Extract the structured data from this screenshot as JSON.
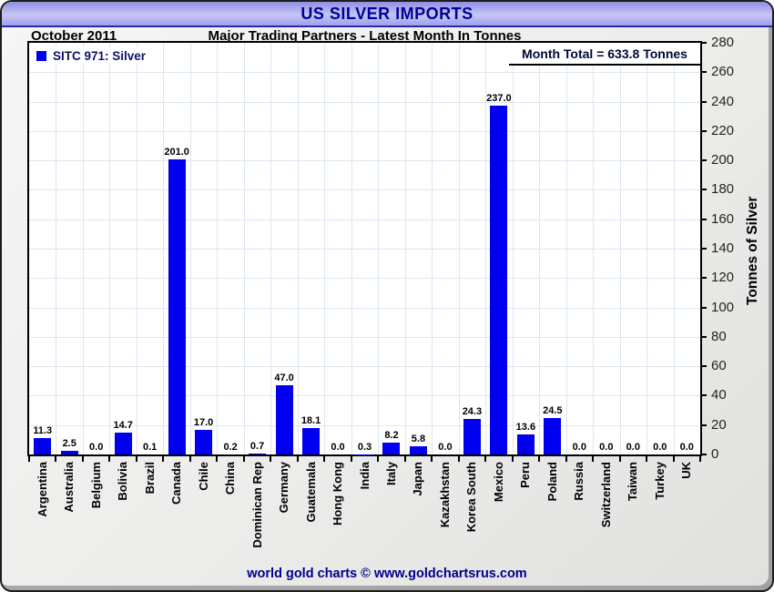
{
  "window": {
    "title": "US SILVER IMPORTS"
  },
  "header": {
    "date": "October 2011",
    "subtitle": "Major Trading Partners - Latest Month In Tonnes",
    "month_total": "Month Total = 633.8 Tonnes"
  },
  "legend": {
    "label": "SITC 971: Silver"
  },
  "footer": {
    "credit": "world gold charts © www.goldchartsrus.com"
  },
  "colors": {
    "bar": "#0000ee",
    "grid": "#dce6f2",
    "title_text": "#000099",
    "titlebar_top": "#8f8fe2",
    "titlebar_mid": "#c6c6f7",
    "titlebar_bottom": "#9e9eec",
    "footer_text": "#00008b"
  },
  "chart_data": {
    "type": "bar",
    "title": "US SILVER IMPORTS",
    "subtitle": "Major Trading Partners - Latest Month In Tonnes",
    "period": "October 2011",
    "series_name": "SITC 971: Silver",
    "month_total_tonnes": 633.8,
    "xlabel": "",
    "ylabel": "Tonnes of Silver",
    "ylim": [
      0,
      280
    ],
    "ytick_step": 20,
    "grid": true,
    "legend_position": "top-left",
    "bar_color": "#0000ee",
    "categories": [
      "Argentina",
      "Australia",
      "Belgium",
      "Bolivia",
      "Brazil",
      "Canada",
      "Chile",
      "China",
      "Dominican Rep",
      "Germany",
      "Guatemala",
      "Hong Kong",
      "India",
      "Italy",
      "Japan",
      "Kazakhstan",
      "Korea South",
      "Mexico",
      "Peru",
      "Poland",
      "Russia",
      "Switzerland",
      "Taiwan",
      "Turkey",
      "UK"
    ],
    "values": [
      11.3,
      2.5,
      0.0,
      14.7,
      0.1,
      201.0,
      17.0,
      0.2,
      0.7,
      47.0,
      18.1,
      0.0,
      0.3,
      8.2,
      5.8,
      0.0,
      24.3,
      237.0,
      13.6,
      24.5,
      0.0,
      0.0,
      0.0,
      0.0,
      0.0
    ]
  }
}
